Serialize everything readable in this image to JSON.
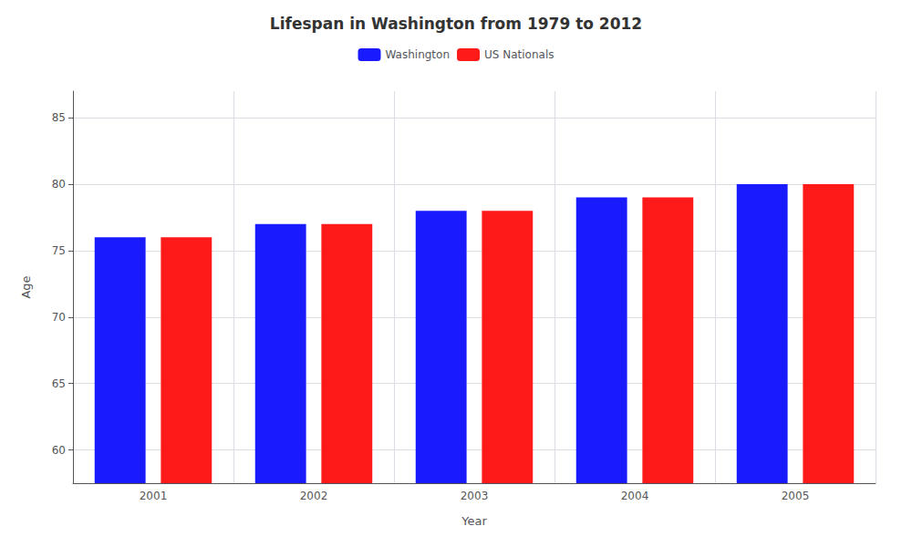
{
  "chart_data": {
    "type": "bar",
    "title": "Lifespan in Washington from 1979 to 2012",
    "x_label": "Year",
    "y_label": "Age",
    "categories": [
      "2001",
      "2002",
      "2003",
      "2004",
      "2005"
    ],
    "series": [
      {
        "name": "Washington",
        "color": "#1a1aff",
        "values": [
          76,
          77,
          78,
          79,
          80
        ]
      },
      {
        "name": "US Nationals",
        "color": "#ff1a1a",
        "values": [
          76,
          77,
          78,
          79,
          80
        ]
      }
    ],
    "ylim": [
      57.5,
      87
    ],
    "yticks": [
      60,
      65,
      70,
      75,
      80,
      85
    ],
    "grid": true,
    "legend": "top"
  }
}
